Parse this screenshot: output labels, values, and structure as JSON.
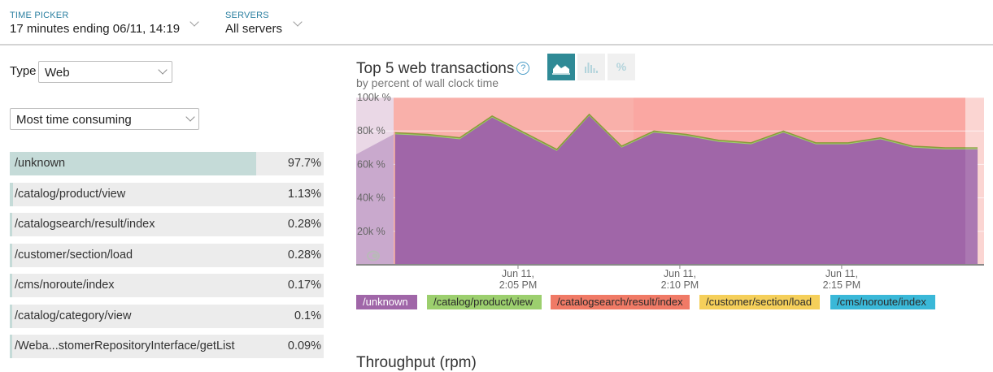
{
  "header": {
    "time_picker": {
      "label": "TIME PICKER",
      "value": "17 minutes ending 06/11, 14:19"
    },
    "servers": {
      "label": "SERVERS",
      "value": "All servers"
    }
  },
  "filters": {
    "type_label": "Type",
    "type_value": "Web",
    "sort_value": "Most time consuming"
  },
  "transactions": [
    {
      "name": "/unknown",
      "percent": "97.7%",
      "share": 0.977
    },
    {
      "name": "/catalog/product/view",
      "percent": "1.13%",
      "share": 0.0113
    },
    {
      "name": "/catalogsearch/result/index",
      "percent": "0.28%",
      "share": 0.0028
    },
    {
      "name": "/customer/section/load",
      "percent": "0.28%",
      "share": 0.0028
    },
    {
      "name": "/cms/noroute/index",
      "percent": "0.17%",
      "share": 0.0017
    },
    {
      "name": "/catalog/category/view",
      "percent": "0.1%",
      "share": 0.001
    },
    {
      "name": "/Weba...stomerRepositoryInterface/getList",
      "percent": "0.09%",
      "share": 0.0009
    }
  ],
  "chart": {
    "title": "Top 5 web transactions",
    "subtitle": "by percent of wall clock time",
    "help_icon": "question-circle-icon",
    "modes": [
      "area-chart-icon",
      "histogram-icon",
      "percent-icon"
    ],
    "active_mode": "area-chart-icon",
    "percent_glyph": "%",
    "legend": [
      {
        "name": "/unknown",
        "color": "#a066a8",
        "text_color": "#ffffff"
      },
      {
        "name": "/catalog/product/view",
        "color": "#9ccf6e",
        "text_color": "#2a2a2a"
      },
      {
        "name": "/catalogsearch/result/index",
        "color": "#f07a66",
        "text_color": "#2a2a2a"
      },
      {
        "name": "/customer/section/load",
        "color": "#f5cf5a",
        "text_color": "#2a2a2a"
      },
      {
        "name": "/cms/noroute/index",
        "color": "#3ab8d8",
        "text_color": "#2a2a2a"
      }
    ]
  },
  "chart_data": {
    "type": "area",
    "title": "Top 5 web transactions",
    "subtitle": "by percent of wall clock time",
    "y_ticks": [
      "100k %",
      "80k %",
      "60k %",
      "40k %",
      "20k %"
    ],
    "ylim": [
      0,
      100000
    ],
    "x_ticks": [
      {
        "line1": "Jun 11,",
        "line2": "2:05 PM"
      },
      {
        "line1": "Jun 11,",
        "line2": "2:10 PM"
      },
      {
        "line1": "Jun 11,",
        "line2": "2:15 PM"
      }
    ],
    "x_ticks_minutes": [
      5,
      10,
      15
    ],
    "x_minutes": [
      1.2,
      2.2,
      3.2,
      4.2,
      5.2,
      6.2,
      7.2,
      8.2,
      9.2,
      10.2,
      11.2,
      12.2,
      13.2,
      14.2,
      15.2,
      16.2,
      17.2,
      18.2,
      19.2
    ],
    "xlim": [
      0.0,
      19.4
    ],
    "series": [
      {
        "name": "/unknown",
        "values": [
          78000,
          77000,
          75000,
          88000,
          78000,
          68000,
          89000,
          70000,
          79000,
          77000,
          73500,
          72000,
          79000,
          72000,
          72000,
          75000,
          70000,
          69000,
          69000
        ]
      },
      {
        "name": "/catalog/product/view",
        "values": [
          900,
          900,
          900,
          900,
          900,
          900,
          900,
          900,
          900,
          900,
          900,
          900,
          900,
          900,
          900,
          900,
          900,
          900,
          900
        ]
      }
    ],
    "grid": true,
    "legend_position": "bottom"
  },
  "footer": {
    "next_heading": "Throughput (rpm)"
  }
}
